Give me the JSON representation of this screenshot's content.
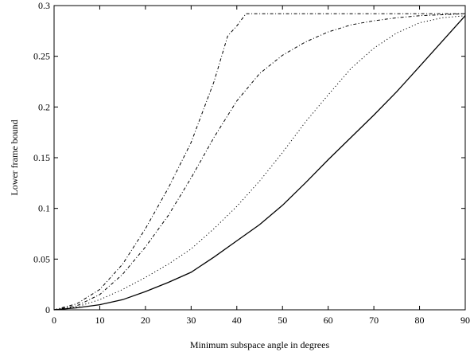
{
  "chart_data": {
    "type": "line",
    "title": "",
    "xlabel": "Minimum subspace angle in degrees",
    "ylabel": "Lower frame bound",
    "xlim": [
      0,
      90
    ],
    "ylim": [
      0,
      0.3
    ],
    "x_ticks": [
      0,
      10,
      20,
      30,
      40,
      50,
      60,
      70,
      80,
      90
    ],
    "y_ticks": [
      0,
      0.05,
      0.1,
      0.15,
      0.2,
      0.25,
      0.3
    ],
    "x_tick_labels": [
      "0",
      "10",
      "20",
      "30",
      "40",
      "50",
      "60",
      "70",
      "80",
      "90"
    ],
    "y_tick_labels": [
      "0",
      "0.05",
      "0.1",
      "0.15",
      "0.2",
      "0.25",
      "0.3"
    ],
    "grid": false,
    "legend": "none",
    "series": [
      {
        "style": "solid",
        "x": [
          0,
          5,
          10,
          15,
          20,
          25,
          30,
          35,
          40,
          45,
          50,
          55,
          60,
          65,
          70,
          75,
          80,
          85,
          90
        ],
        "y": [
          0,
          0.002,
          0.005,
          0.01,
          0.018,
          0.027,
          0.037,
          0.052,
          0.068,
          0.084,
          0.103,
          0.125,
          0.148,
          0.17,
          0.192,
          0.215,
          0.24,
          0.265,
          0.29
        ]
      },
      {
        "style": "dotted",
        "x": [
          0,
          5,
          10,
          15,
          20,
          25,
          30,
          35,
          40,
          45,
          50,
          55,
          60,
          65,
          70,
          75,
          80,
          85,
          90
        ],
        "y": [
          0,
          0.003,
          0.01,
          0.02,
          0.032,
          0.045,
          0.06,
          0.08,
          0.102,
          0.127,
          0.155,
          0.185,
          0.212,
          0.238,
          0.258,
          0.273,
          0.283,
          0.288,
          0.29
        ]
      },
      {
        "style": "dash-dot",
        "x": [
          0,
          5,
          10,
          15,
          20,
          25,
          30,
          35,
          40,
          45,
          50,
          55,
          60,
          65,
          70,
          75,
          80,
          85,
          90
        ],
        "y": [
          0,
          0.004,
          0.015,
          0.035,
          0.062,
          0.093,
          0.13,
          0.17,
          0.206,
          0.233,
          0.251,
          0.264,
          0.274,
          0.281,
          0.285,
          0.288,
          0.29,
          0.291,
          0.292
        ]
      },
      {
        "style": "dash-dot",
        "x": [
          0,
          5,
          10,
          15,
          20,
          25,
          30,
          35,
          38,
          40,
          42,
          45,
          50,
          60,
          70,
          80,
          90
        ],
        "y": [
          0,
          0.006,
          0.02,
          0.045,
          0.08,
          0.12,
          0.165,
          0.225,
          0.27,
          0.28,
          0.292,
          0.292,
          0.292,
          0.292,
          0.292,
          0.292,
          0.292
        ]
      }
    ]
  }
}
